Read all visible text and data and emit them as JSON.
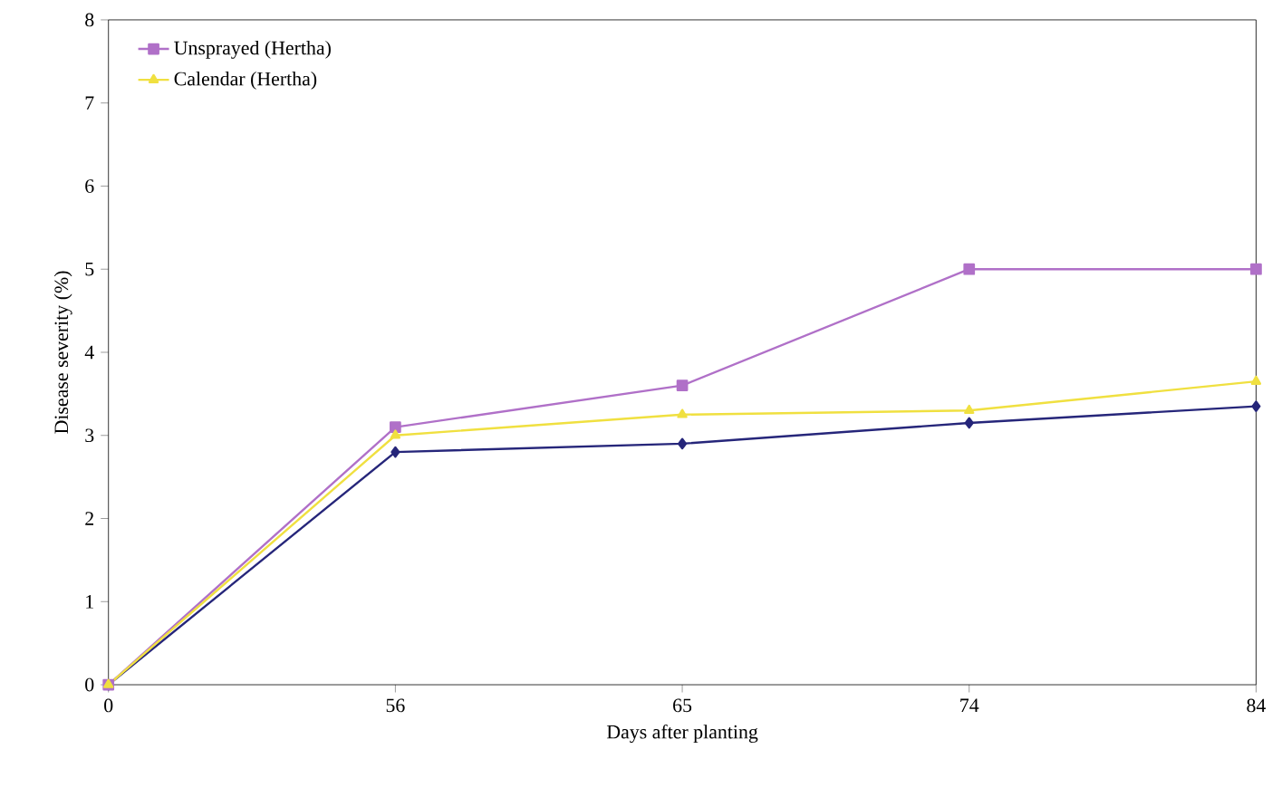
{
  "chart_data": {
    "type": "line",
    "xlabel": "Days after planting",
    "ylabel": "Disease severity (%)",
    "categories": [
      "0",
      "56",
      "65",
      "74",
      "84"
    ],
    "ylim": [
      0,
      8
    ],
    "yticks": [
      0,
      1,
      2,
      3,
      4,
      5,
      6,
      7,
      8
    ],
    "grid": false,
    "legend": "top left",
    "series": [
      {
        "color": "#26267a",
        "marker": "diamond",
        "values": [
          0,
          2.8,
          2.9,
          3.15,
          3.35
        ]
      },
      {
        "name": "Unsprayed (Hertha)",
        "color": "#b070c8",
        "marker": "square",
        "values": [
          0,
          3.1,
          3.6,
          5.0,
          5.0
        ]
      },
      {
        "name": "Calendar (Hertha)",
        "color": "#f0e040",
        "marker": "triangle",
        "values": [
          0,
          3.0,
          3.25,
          3.3,
          3.65
        ]
      }
    ]
  }
}
